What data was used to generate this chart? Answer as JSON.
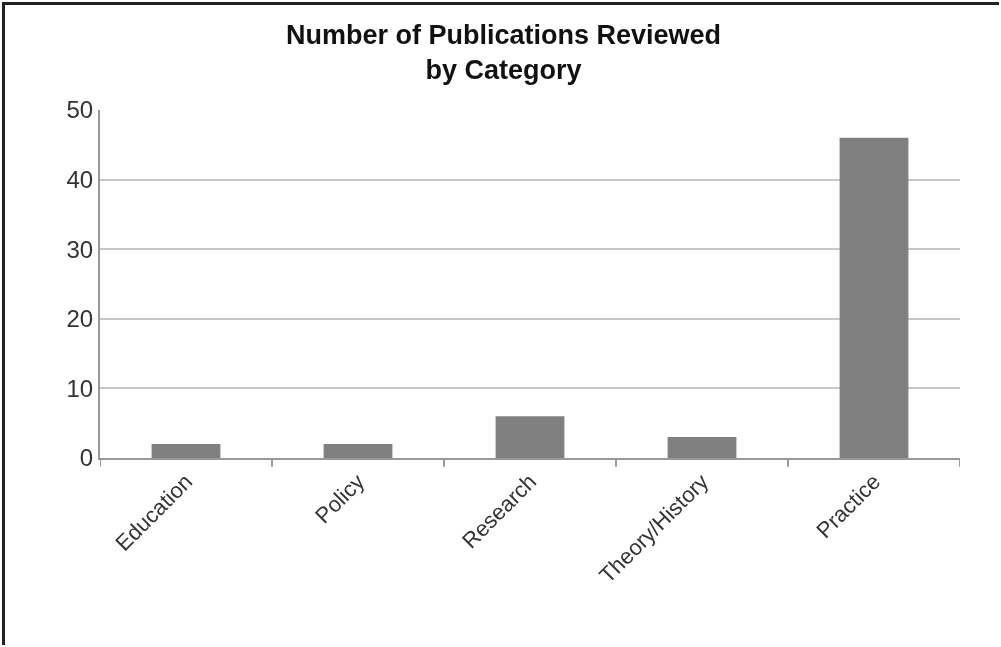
{
  "chart_data": {
    "type": "bar",
    "title": "Number of Publications Reviewed\nby Category",
    "categories": [
      "Education",
      "Policy",
      "Research",
      "Theory/History",
      "Practice"
    ],
    "values": [
      2,
      2,
      6,
      3,
      46
    ],
    "color": "#808080",
    "ylim": [
      0,
      50
    ],
    "yticks": [
      0,
      10,
      20,
      30,
      40,
      50
    ],
    "grid": "y",
    "legend": false
  }
}
